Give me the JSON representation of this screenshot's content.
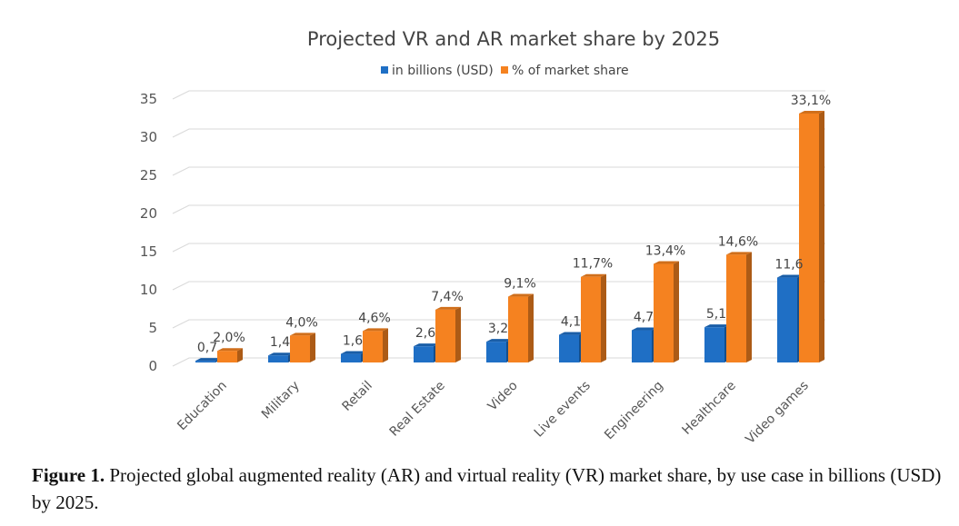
{
  "chart_data": {
    "type": "bar",
    "title": "Projected VR and AR market share by 2025",
    "categories": [
      "Education",
      "Military",
      "Retail",
      "Real Estate",
      "Video",
      "Live events",
      "Engineering",
      "Healthcare",
      "Video games"
    ],
    "series": [
      {
        "name": "in billions (USD)",
        "color": "#1f6fc5",
        "values": [
          0.7,
          1.4,
          1.6,
          2.6,
          3.2,
          4.1,
          4.7,
          5.1,
          11.6
        ],
        "labels": [
          "0,7",
          "1,4",
          "1,6",
          "2,6",
          "3,2",
          "4,1",
          "4,7",
          "5,1",
          "11,6"
        ]
      },
      {
        "name": "% of market share",
        "color": "#f58220",
        "values": [
          2.0,
          4.0,
          4.6,
          7.4,
          9.1,
          11.7,
          13.4,
          14.6,
          33.1
        ],
        "labels": [
          "2,0%",
          "4,0%",
          "4,6%",
          "7,4%",
          "9,1%",
          "11,7%",
          "13,4%",
          "14,6%",
          "33,1%"
        ]
      }
    ],
    "yticks": [
      "0",
      "5",
      "10",
      "15",
      "20",
      "25",
      "30",
      "35"
    ],
    "ylim": [
      0,
      35
    ],
    "grid": true,
    "legend_position": "top-center"
  },
  "caption": {
    "label": "Figure 1.",
    "text": " Projected global augmented reality (AR) and virtual reality (VR) market share, by use case in billions (USD) by 2025."
  }
}
